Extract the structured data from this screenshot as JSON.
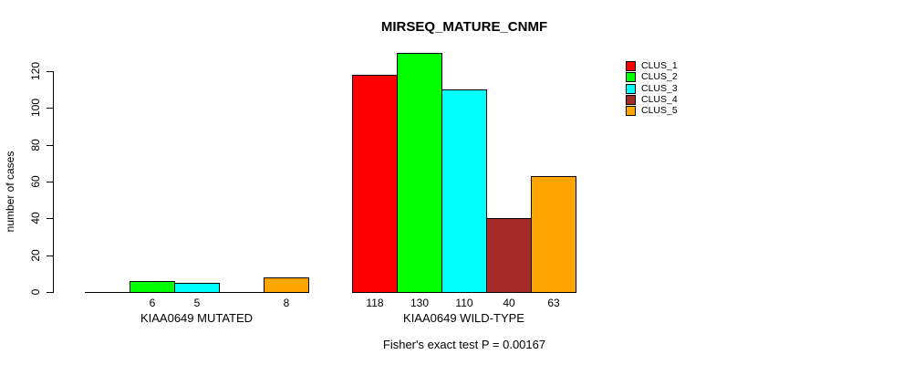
{
  "title": "MIRSEQ_MATURE_CNMF",
  "ylabel": "number of cases",
  "footer": "Fisher's exact test P = 0.00167",
  "chart_data": {
    "type": "bar",
    "title": "MIRSEQ_MATURE_CNMF",
    "xlabel": "",
    "ylabel": "number of cases",
    "ylim": [
      0,
      130
    ],
    "yticks": [
      0,
      20,
      40,
      60,
      80,
      100,
      120
    ],
    "grid": false,
    "legend_position": "top-right",
    "categories": [
      "KIAA0649 MUTATED",
      "KIAA0649 WILD-TYPE"
    ],
    "series": [
      {
        "name": "CLUS_1",
        "color": "#FF0000",
        "values": [
          0,
          118
        ]
      },
      {
        "name": "CLUS_2",
        "color": "#00FF00",
        "values": [
          6,
          130
        ]
      },
      {
        "name": "CLUS_3",
        "color": "#00FFFF",
        "values": [
          5,
          110
        ]
      },
      {
        "name": "CLUS_4",
        "color": "#A52A2A",
        "values": [
          0,
          40
        ]
      },
      {
        "name": "CLUS_5",
        "color": "#FFA500",
        "values": [
          8,
          63
        ]
      }
    ],
    "bar_value_labels": {
      "shown": true,
      "hide_zero": true
    },
    "annotation": "Fisher's exact test P = 0.00167"
  }
}
